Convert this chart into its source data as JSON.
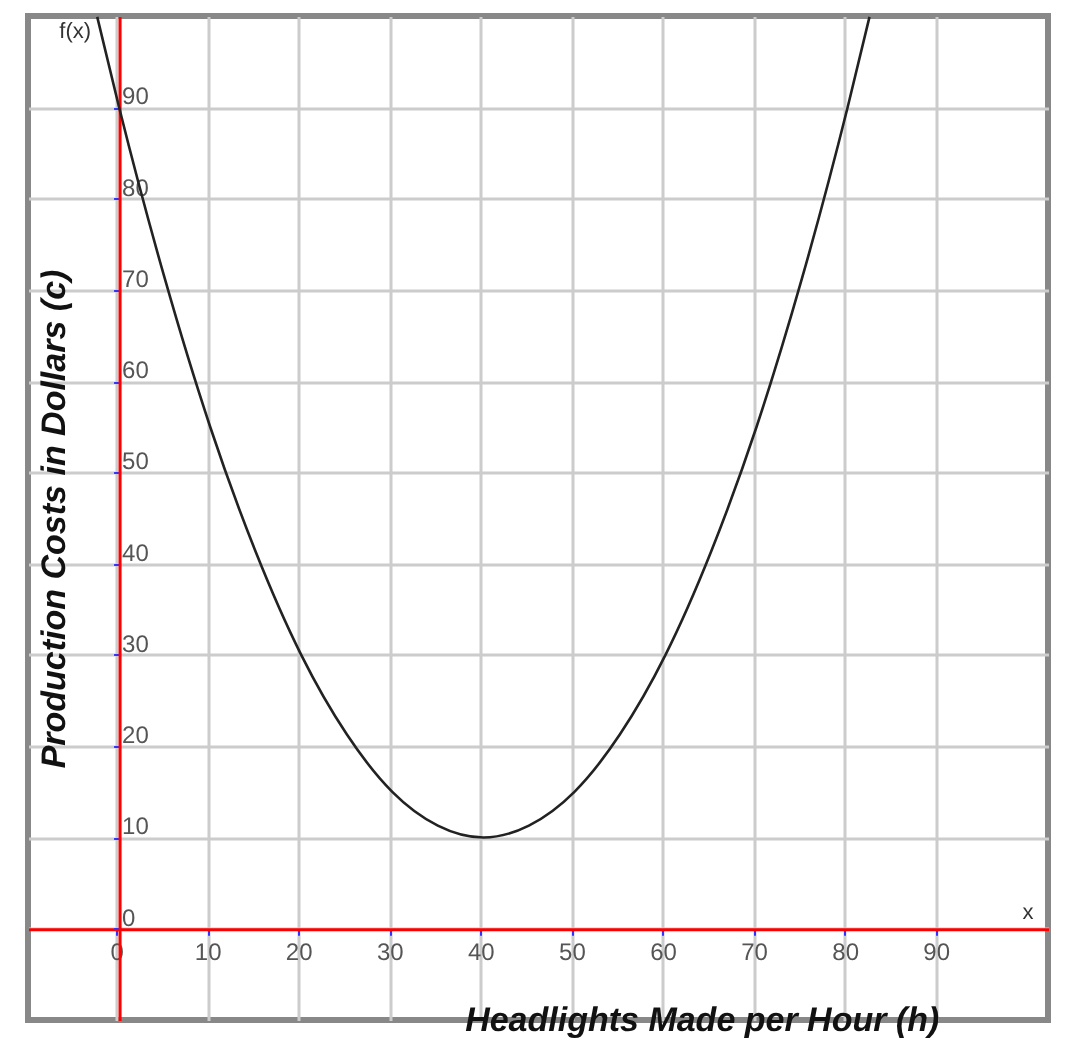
{
  "chart_data": {
    "type": "line",
    "xlabel": "Headlights Made per Hour (h)",
    "ylabel": "Production Costs in Dollars (c)",
    "annotations": [
      "f(x)",
      "x"
    ],
    "x": [
      -2.4,
      0,
      5,
      10,
      15,
      20,
      25,
      30,
      35,
      40,
      45,
      50,
      55,
      60,
      65,
      70,
      75,
      80,
      82.4
    ],
    "series": [
      {
        "color": "#222222",
        "values": [
          99.9,
          90,
          71.3,
          55,
          41.3,
          30,
          21.3,
          15,
          11.3,
          10,
          11.3,
          15,
          21.3,
          30,
          41.3,
          55,
          71.3,
          90,
          99.9
        ]
      }
    ],
    "xlim": [
      -10,
      102
    ],
    "ylim": [
      -10,
      100
    ],
    "xticks": [
      0,
      10,
      20,
      30,
      40,
      50,
      60,
      70,
      80,
      90
    ],
    "yticks": [
      0,
      10,
      20,
      30,
      40,
      50,
      60,
      70,
      80,
      90
    ],
    "grid": true,
    "marker": "none",
    "line_style": "solid"
  }
}
